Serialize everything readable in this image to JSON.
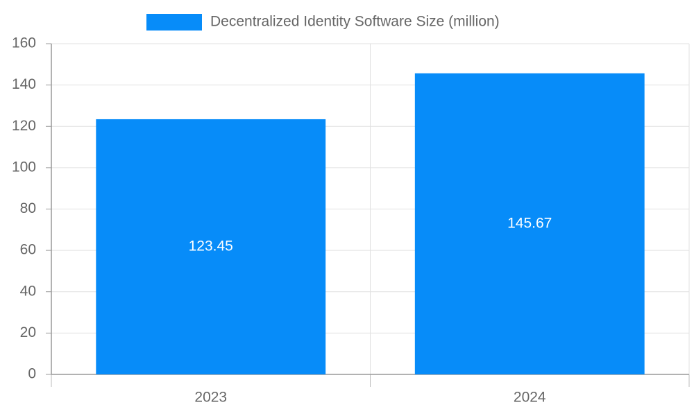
{
  "chart_data": {
    "type": "bar",
    "categories": [
      "2023",
      "2024"
    ],
    "series": [
      {
        "name": "Decentralized Identity Software Size (million)",
        "color": "#078cf9",
        "values": [
          123.45,
          145.67
        ]
      }
    ],
    "ylim": [
      0,
      160
    ],
    "yticks": [
      0,
      20,
      40,
      60,
      80,
      100,
      120,
      140,
      160
    ],
    "grid": true,
    "legend": "top",
    "data_labels": true
  }
}
